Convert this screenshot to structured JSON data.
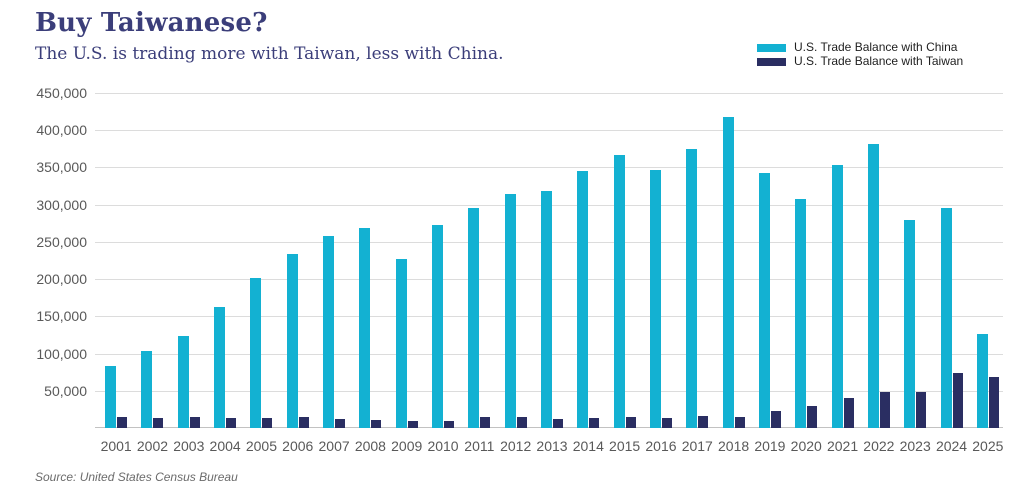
{
  "header": {
    "title": "Buy Taiwanese?",
    "subtitle": "The U.S. is trading more with Taiwan, less with China."
  },
  "legend": [
    {
      "label": "U.S. Trade Balance with China",
      "color": "#13b1d2"
    },
    {
      "label": "U.S. Trade Balance with Taiwan",
      "color": "#2a2e62"
    }
  ],
  "footer": {
    "source": "Source: United States Census Bureau"
  },
  "colors": {
    "china_bar": "#13b1d2",
    "taiwan_bar": "#2a2e62",
    "title_text": "#3b3e7a",
    "axis_text": "#595959",
    "gridline": "#dcdcdc",
    "background": "#ffffff"
  },
  "chart_data": {
    "type": "bar",
    "title": "Buy Taiwanese?",
    "subtitle": "The U.S. is trading more with Taiwan, less with China.",
    "categories": [
      "2001",
      "2002",
      "2003",
      "2004",
      "2005",
      "2006",
      "2007",
      "2008",
      "2009",
      "2010",
      "2011",
      "2012",
      "2013",
      "2014",
      "2015",
      "2016",
      "2017",
      "2018",
      "2019",
      "2020",
      "2021",
      "2022",
      "2023",
      "2024",
      "2025"
    ],
    "series": [
      {
        "name": "U.S. Trade Balance with China",
        "color": "#13b1d2",
        "values": [
          83000,
          103000,
          124000,
          162000,
          202000,
          234000,
          258500,
          268000,
          227000,
          273000,
          295000,
          315000,
          318500,
          345000,
          367000,
          347000,
          375000,
          418000,
          342500,
          308000,
          353000,
          382000,
          279000,
          295500,
          126000
        ]
      },
      {
        "name": "U.S. Trade Balance with Taiwan",
        "color": "#2a2e62",
        "values": [
          15300,
          13800,
          14200,
          12900,
          12800,
          15200,
          12600,
          11400,
          9900,
          9800,
          15400,
          15400,
          12200,
          14100,
          14800,
          13300,
          16700,
          15200,
          23100,
          29900,
          40200,
          48000,
          48000,
          74000,
          68000
        ]
      }
    ],
    "xlabel": "",
    "ylabel": "",
    "ylim": [
      0,
      450000
    ],
    "grid": true,
    "legend_position": "top-right",
    "yticks": [
      {
        "value": 450000,
        "label": "450,000"
      },
      {
        "value": 400000,
        "label": "400,000"
      },
      {
        "value": 350000,
        "label": "350,000"
      },
      {
        "value": 300000,
        "label": "300,000"
      },
      {
        "value": 250000,
        "label": "250,000"
      },
      {
        "value": 200000,
        "label": "200,000"
      },
      {
        "value": 150000,
        "label": "150,000"
      },
      {
        "value": 100000,
        "label": "100,000"
      },
      {
        "value": 50000,
        "label": "50,000"
      }
    ]
  }
}
